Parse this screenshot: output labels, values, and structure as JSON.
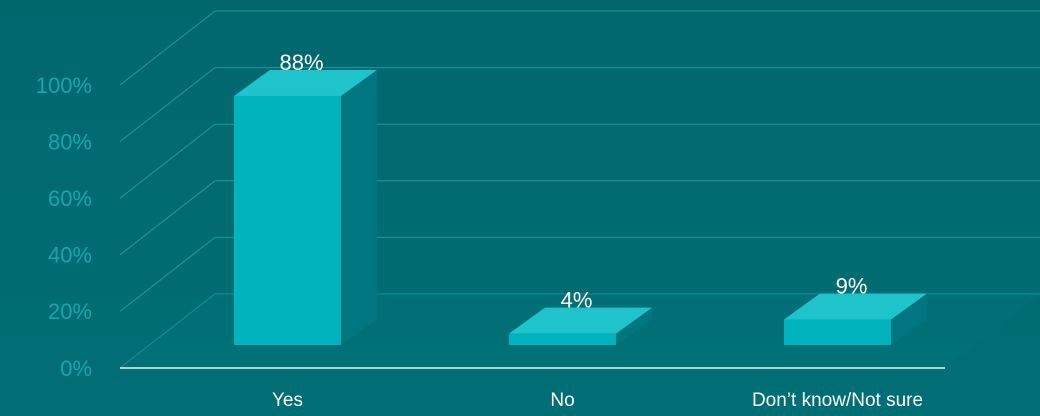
{
  "chart_data": {
    "type": "bar3d",
    "categories": [
      "Yes",
      "No",
      "Don’t know/Not sure"
    ],
    "values": [
      88,
      4,
      9
    ],
    "value_labels": [
      "88%",
      "4%",
      "9%"
    ],
    "color": "#00b3bd",
    "ylim": [
      0,
      100
    ],
    "yticks": [
      {
        "value": 0,
        "label": "0%"
      },
      {
        "value": 20,
        "label": "20%"
      },
      {
        "value": 40,
        "label": "40%"
      },
      {
        "value": 60,
        "label": "60%"
      },
      {
        "value": 80,
        "label": "80%"
      },
      {
        "value": 100,
        "label": "100%"
      }
    ],
    "grid": true
  }
}
